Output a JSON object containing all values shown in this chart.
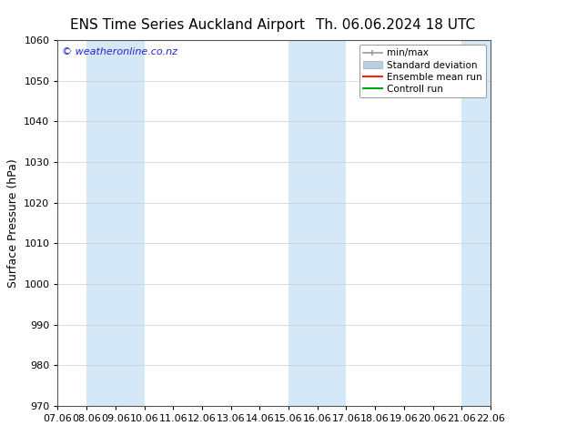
{
  "title_left": "ENS Time Series Auckland Airport",
  "title_right": "Th. 06.06.2024 18 UTC",
  "ylabel": "Surface Pressure (hPa)",
  "xlabel_ticks": [
    "07.06",
    "08.06",
    "09.06",
    "10.06",
    "11.06",
    "12.06",
    "13.06",
    "14.06",
    "15.06",
    "16.06",
    "17.06",
    "18.06",
    "19.06",
    "20.06",
    "21.06",
    "22.06"
  ],
  "xlim": [
    0,
    15
  ],
  "ylim": [
    970,
    1060
  ],
  "yticks": [
    970,
    980,
    990,
    1000,
    1010,
    1020,
    1030,
    1040,
    1050,
    1060
  ],
  "shaded_bands": [
    {
      "x_start": 1.0,
      "x_end": 3.0,
      "color": "#d4e8f8"
    },
    {
      "x_start": 8.0,
      "x_end": 10.0,
      "color": "#d4e8f8"
    },
    {
      "x_start": 14.0,
      "x_end": 15.0,
      "color": "#d4e8f8"
    }
  ],
  "watermark": "© weatheronline.co.nz",
  "watermark_color": "#2222cc",
  "background_color": "#ffffff",
  "plot_bg_color": "#ffffff",
  "legend_entries": [
    {
      "label": "min/max",
      "color": "#aaaaaa",
      "type": "errorbar"
    },
    {
      "label": "Standard deviation",
      "color": "#b8cfe0",
      "type": "fill"
    },
    {
      "label": "Ensemble mean run",
      "color": "#ff0000",
      "type": "line"
    },
    {
      "label": "Controll run",
      "color": "#00aa00",
      "type": "line"
    }
  ],
  "title_fontsize": 11,
  "axis_label_fontsize": 9,
  "tick_fontsize": 8,
  "legend_fontsize": 7.5
}
